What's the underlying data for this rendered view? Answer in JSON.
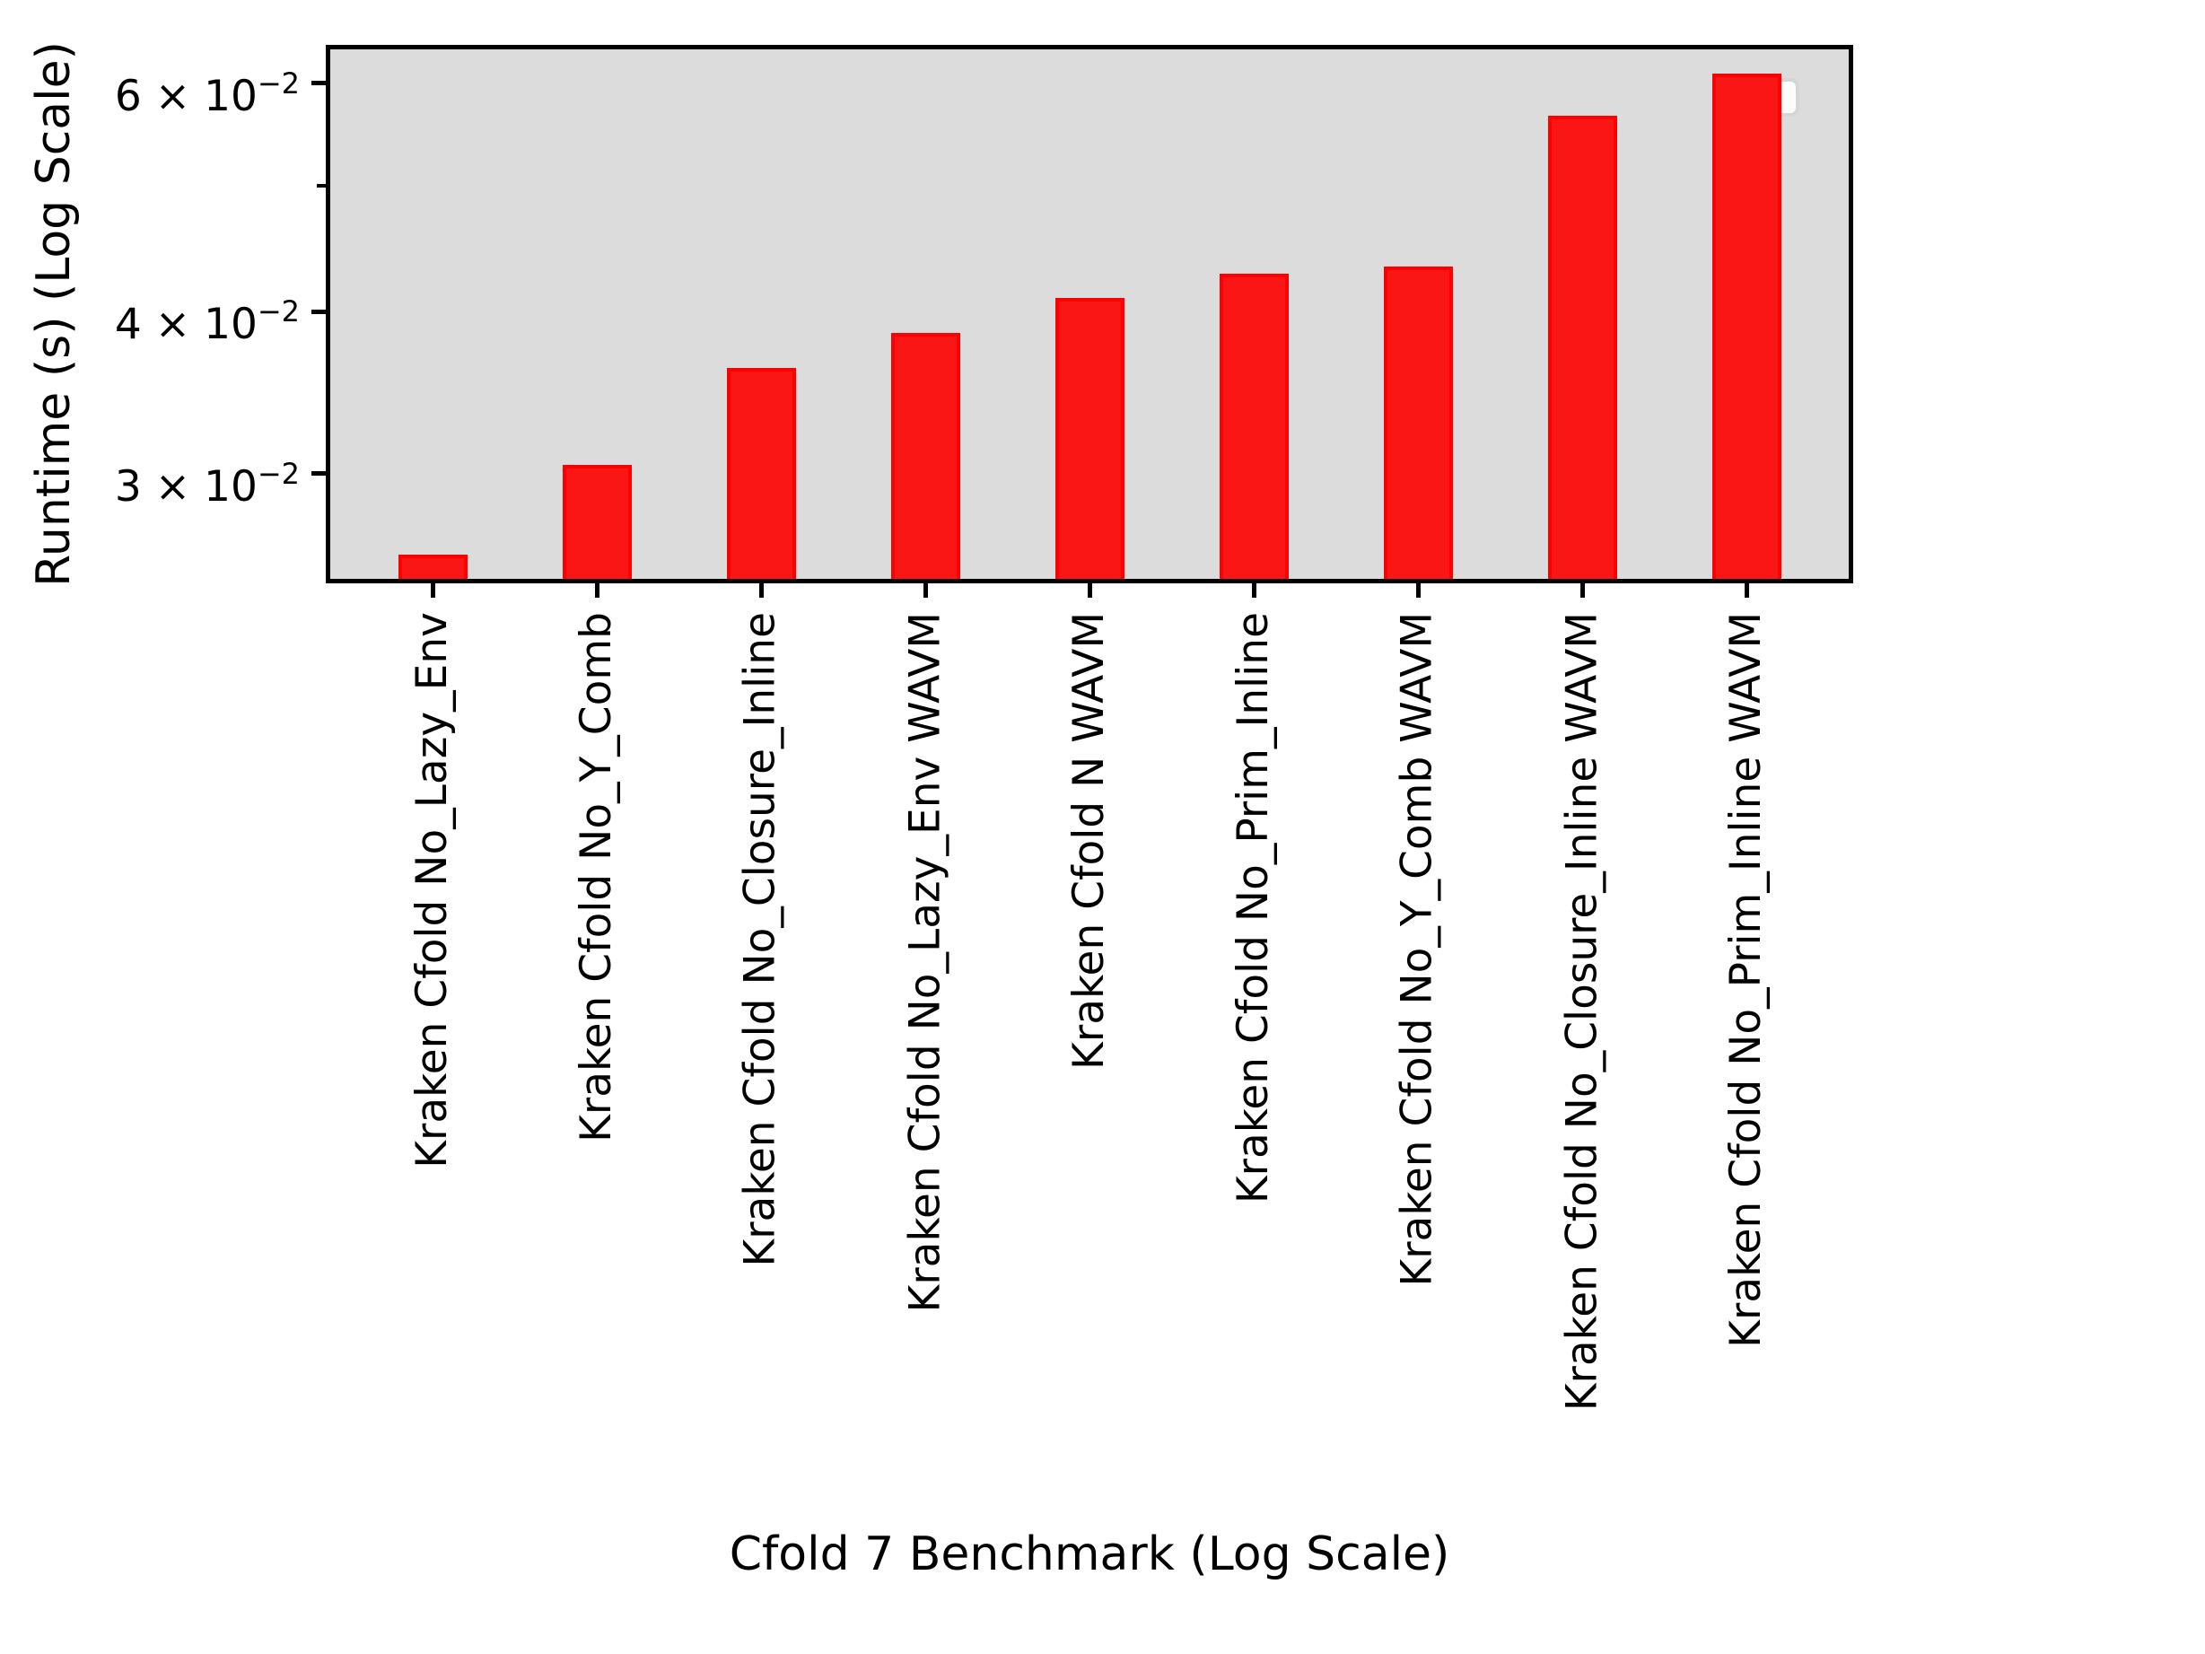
{
  "chart_data": {
    "type": "bar",
    "title": "",
    "xlabel": "Cfold 7 Benchmark (Log Scale)",
    "ylabel": "Runtime (s) (Log Scale)",
    "categories": [
      "Kraken Cfold No_Lazy_Env",
      "Kraken Cfold No_Y_Comb",
      "Kraken Cfold No_Closure_Inline",
      "Kraken Cfold No_Lazy_Env WAVM",
      "Kraken Cfold N WAVM",
      "Kraken Cfold No_Prim_Inline",
      "Kraken Cfold No_Y_Comb WAVM",
      "Kraken Cfold No_Closure_Inline WAVM",
      "Kraken Cfold No_Prim_Inline WAVM"
    ],
    "values": [
      0.026,
      0.0305,
      0.0362,
      0.0385,
      0.041,
      0.0428,
      0.0433,
      0.0566,
      0.061
    ],
    "yscale": "log",
    "ylim": [
      0.0249,
      0.0637
    ],
    "grid": false,
    "x_tick_rotation": 90,
    "legend": {
      "position": "upper right",
      "entries": []
    },
    "y_ticks": [
      {
        "value": 0.06,
        "base": "6 × 10",
        "exp": "−2"
      },
      {
        "value": 0.04,
        "base": "4 × 10",
        "exp": "−2"
      },
      {
        "value": 0.03,
        "base": "3 × 10",
        "exp": "−2"
      }
    ],
    "y_minor_ticks": [
      0.05
    ],
    "colors": {
      "bar_fill": "#fb1616",
      "bar_edge": "#ff0000",
      "plot_background": "#dcdcdc",
      "spine": "#000000",
      "figure_background": "#ffffff",
      "legend_fill": "#fcfcfc",
      "legend_border": "#d6d6d6"
    }
  }
}
